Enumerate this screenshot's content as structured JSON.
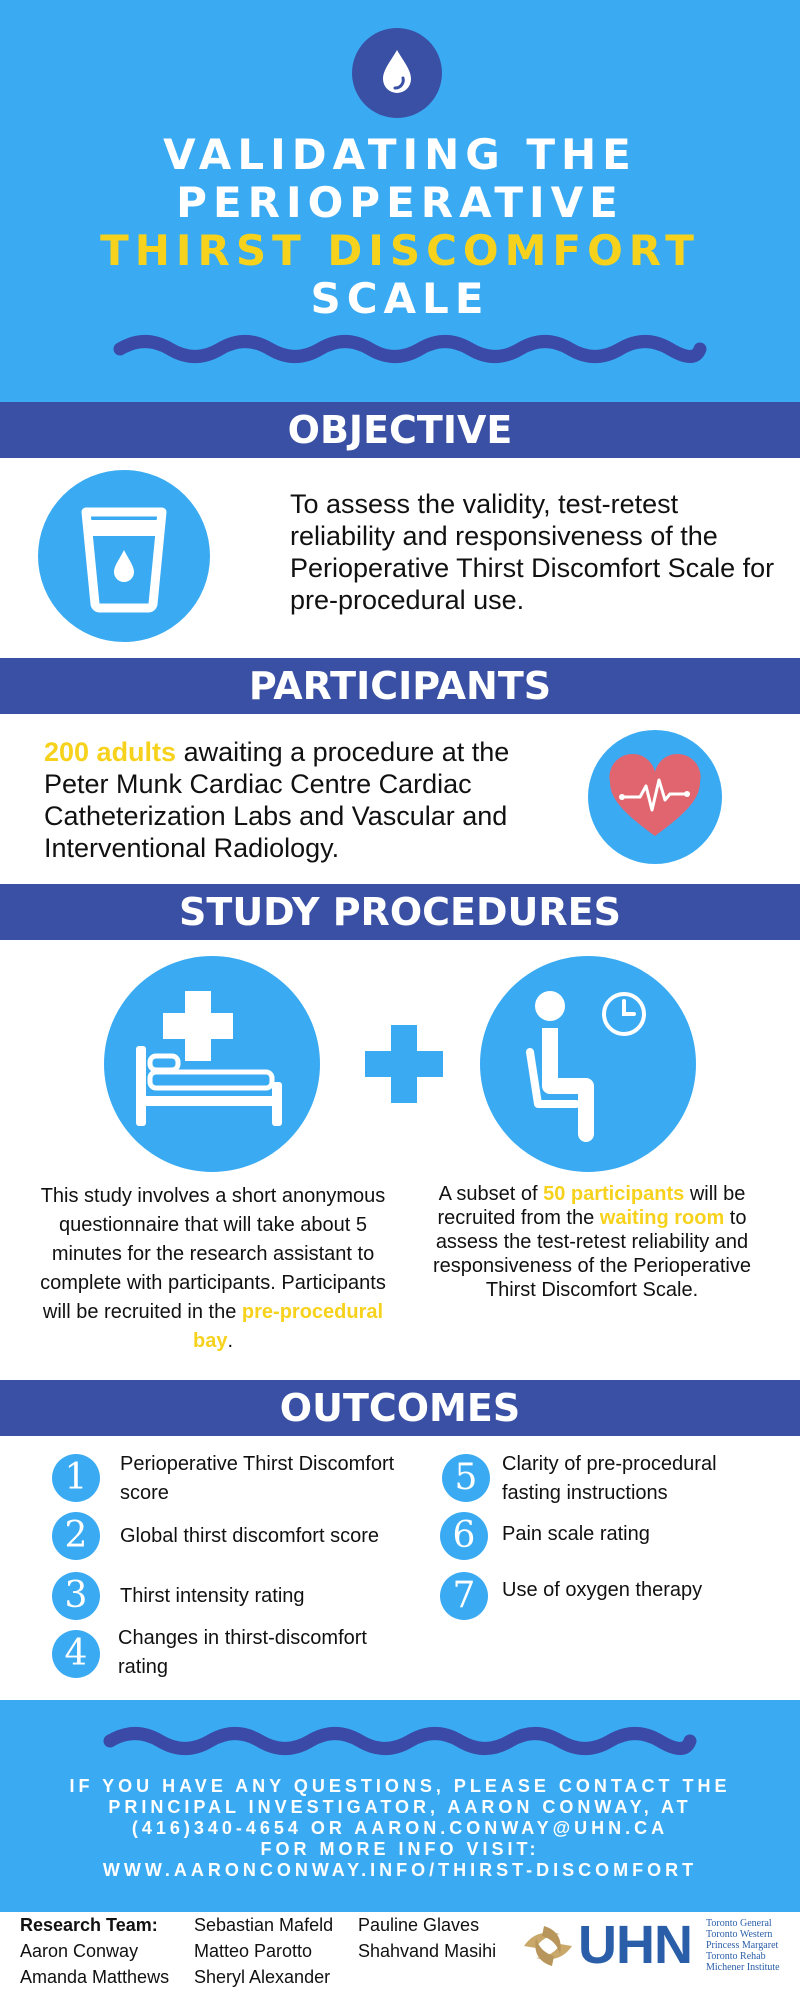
{
  "header": {
    "title_line1": "VALIDATING THE",
    "title_line2": "PERIOPERATIVE",
    "title_line3": "THIRST DISCOMFORT",
    "title_line4": "SCALE"
  },
  "objective": {
    "heading": "OBJECTIVE",
    "text": "To assess the validity, test-retest reliability and responsiveness of the Perioperative Thirst Discomfort Scale for pre-procedural use."
  },
  "participants": {
    "heading": "PARTICIPANTS",
    "highlight": "200 adults",
    "text": " awaiting a procedure at the Peter Munk Cardiac Centre Cardiac Catheterization Labs and Vascular and Interventional Radiology."
  },
  "procedures": {
    "heading": "STUDY PROCEDURES",
    "left_text": "This study involves a short anonymous questionnaire that will take about 5 minutes for the research assistant to complete with participants. Participants will be recruited in the ",
    "left_highlight": "pre-procedural bay",
    "left_end": ".",
    "right_text1": "A subset of  ",
    "right_highlight1": "50 participants",
    "right_text2": " will be recruited from the ",
    "right_highlight2": "waiting room",
    "right_text3": " to assess the test-retest reliability and responsiveness of the Perioperative Thirst Discomfort Scale."
  },
  "outcomes": {
    "heading": "OUTCOMES",
    "items": [
      {
        "num": "1",
        "text": "Perioperative Thirst Discomfort score"
      },
      {
        "num": "2",
        "text": "Global thirst discomfort score"
      },
      {
        "num": "3",
        "text": "Thirst intensity rating"
      },
      {
        "num": "4",
        "text": "Changes in thirst-discomfort rating"
      },
      {
        "num": "5",
        "text": "Clarity of pre-procedural fasting instructions"
      },
      {
        "num": "6",
        "text": "Pain scale rating"
      },
      {
        "num": "7",
        "text": "Use of oxygen therapy"
      }
    ]
  },
  "footer": {
    "contact_line1": "IF YOU HAVE ANY QUESTIONS, PLEASE CONTACT THE",
    "contact_line2": "PRINCIPAL INVESTIGATOR, AARON CONWAY, AT",
    "contact_line3": "(416)340-4654 OR AARON.CONWAY@UHN.CA",
    "contact_line4": "FOR MORE INFO VISIT:",
    "contact_line5": "WWW.AARONCONWAY.INFO/THIRST-DISCOMFORT",
    "team_label": "Research Team:",
    "team_col1": [
      "Aaron Conway",
      "Amanda Matthews"
    ],
    "team_col2": [
      "Sebastian Mafeld",
      "Matteo Parotto",
      "Sheryl Alexander"
    ],
    "team_col3": [
      "Pauline Glaves",
      "Shahvand Masihi"
    ],
    "logo_text": "UHN",
    "logo_sites": [
      "Toronto General",
      "Toronto Western",
      "Princess Margaret",
      "Toronto Rehab",
      "Michener Institute"
    ]
  },
  "colors": {
    "sky_blue": "#3aabf3",
    "navy": "#3a50a5",
    "wave": "#3a4aa6",
    "yellow": "#f7d21d",
    "heart": "#e0656f"
  },
  "icons": [
    "water-drop-icon",
    "water-glass-icon",
    "heart-pulse-icon",
    "hospital-bed-icon",
    "plus-icon",
    "waiting-room-icon",
    "uhn-logo-icon"
  ]
}
